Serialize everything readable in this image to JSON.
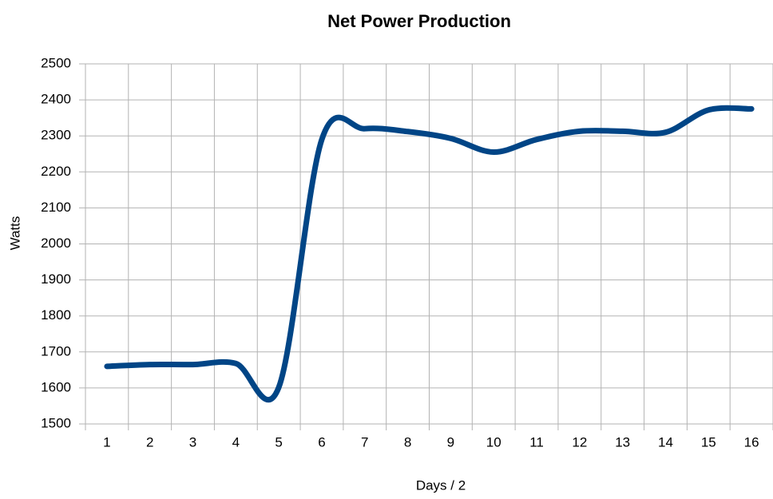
{
  "chart_data": {
    "type": "line",
    "title": "Net Power Production",
    "x_label": "Days / 2",
    "y_label": "Watts",
    "categories": [
      "1",
      "2",
      "3",
      "4",
      "5",
      "6",
      "7",
      "8",
      "9",
      "10",
      "11",
      "12",
      "13",
      "14",
      "15",
      "16"
    ],
    "series": [
      {
        "name": "Net Power",
        "color": "#004586",
        "values": [
          1660,
          1665,
          1665,
          1668,
          1602,
          2290,
          2320,
          2312,
          2293,
          2255,
          2290,
          2313,
          2313,
          2310,
          2372,
          2375
        ]
      }
    ],
    "ylim": [
      1500,
      2500
    ],
    "yticks": [
      1500,
      1600,
      1700,
      1800,
      1900,
      2000,
      2100,
      2200,
      2300,
      2400,
      2500
    ],
    "grid": true,
    "smooth": true
  }
}
